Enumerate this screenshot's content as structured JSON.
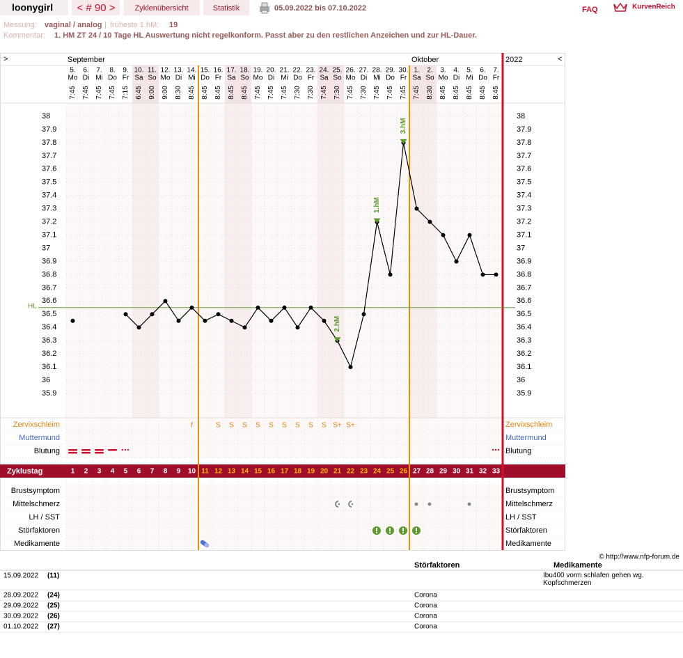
{
  "header": {
    "user": "loonygirl",
    "cycle_nav": "< # 90 >",
    "tabs": [
      "Zyklenübersicht",
      "Statistik"
    ],
    "date_range": "05.09.2022 bis 07.10.2022",
    "faq": "FAQ",
    "logo": "KurvenReich"
  },
  "info": {
    "measurement_label": "Messung:",
    "measurement": "vaginal / analog",
    "separator": "|",
    "earliest_label": "früheste 1.hM:",
    "earliest": "19",
    "comment_label": "Kommentar:",
    "comment": "1. HM ZT 24 / 10 Tage HL Auswertung nicht regelkonform. Passt aber zu den restlichen Anzeichen und zur HL-Dauer."
  },
  "chart_data": {
    "type": "line",
    "nav_left": ">",
    "nav_right": "<",
    "year": "2022",
    "months": [
      {
        "label": "September",
        "category": "5."
      },
      {
        "label": "Oktober",
        "category": "1."
      }
    ],
    "categories": [
      "5.",
      "6.",
      "7.",
      "8.",
      "9.",
      "10.",
      "11.",
      "12.",
      "13.",
      "14.",
      "15.",
      "16.",
      "17.",
      "18.",
      "19.",
      "20.",
      "21.",
      "22.",
      "23.",
      "24.",
      "25.",
      "26.",
      "27.",
      "28.",
      "29.",
      "30.",
      "1.",
      "2.",
      "3.",
      "4.",
      "5.",
      "6.",
      "7."
    ],
    "weekdays": [
      "Mo",
      "Di",
      "Mi",
      "Do",
      "Fr",
      "Sa",
      "So",
      "Mo",
      "Di",
      "Mi",
      "Do",
      "Fr",
      "Sa",
      "So",
      "Mo",
      "Di",
      "Mi",
      "Do",
      "Fr",
      "Sa",
      "So",
      "Mo",
      "Di",
      "Mi",
      "Do",
      "Fr",
      "Sa",
      "So",
      "Mo",
      "Di",
      "Mi",
      "Do",
      "Fr"
    ],
    "times": [
      "7:45",
      "7:45",
      "7:45",
      "7:45",
      "7:15",
      "6:45",
      "9:00",
      "9:00",
      "8:30",
      "8:45",
      "8:45",
      "8:45",
      "8:45",
      "8:45",
      "7:45",
      "7:45",
      "7:45",
      "7:30",
      "7:30",
      "7:45",
      "7:30",
      "7:45",
      "7:30",
      "7:45",
      "7:45",
      "7:45",
      "7:45",
      "8:30",
      "8:45",
      "8:45",
      "8:45",
      "8:45",
      "8:45"
    ],
    "values": [
      36.45,
      null,
      null,
      null,
      36.5,
      36.4,
      36.5,
      36.6,
      36.45,
      36.55,
      36.45,
      36.5,
      36.45,
      36.4,
      36.55,
      36.45,
      36.55,
      36.4,
      36.55,
      36.45,
      36.3,
      36.1,
      36.5,
      37.2,
      36.8,
      37.8,
      37.3,
      37.2,
      37.1,
      36.9,
      37.1,
      36.8,
      36.8
    ],
    "color": "#000000",
    "ylim": [
      35.9,
      38
    ],
    "yticks": [
      35.9,
      36,
      36.1,
      36.2,
      36.3,
      36.4,
      36.5,
      36.6,
      36.7,
      36.8,
      36.9,
      37,
      37.1,
      37.2,
      37.3,
      37.4,
      37.5,
      37.6,
      37.7,
      37.8,
      37.9,
      38
    ],
    "grid": true,
    "cover_line": {
      "label": "HL",
      "value": 36.55,
      "color": "#6a9a3a"
    },
    "annotations": [
      {
        "label": "1.hM",
        "category": "28."
      },
      {
        "label": "2.hM",
        "category": "25."
      },
      {
        "label": "3.hM",
        "category": "30."
      }
    ],
    "mucus_label": "Zervixschleim",
    "mucus": [
      null,
      null,
      null,
      null,
      null,
      null,
      null,
      null,
      null,
      "f",
      null,
      "S",
      "S",
      "S",
      "S",
      "S",
      "S",
      "S",
      "S",
      "S",
      "S+",
      "S+",
      null,
      null,
      null,
      null,
      null,
      null,
      null,
      null,
      null,
      null,
      null
    ],
    "cervix_label": "Muttermund",
    "bleeding_label": "Blutung",
    "cycle_day_label": "Zyklustag",
    "cycle_days": [
      1,
      2,
      3,
      4,
      5,
      6,
      7,
      8,
      9,
      10,
      11,
      12,
      13,
      14,
      15,
      16,
      17,
      18,
      19,
      20,
      21,
      22,
      23,
      24,
      25,
      26,
      27,
      28,
      29,
      30,
      31,
      32,
      33
    ]
  },
  "symptom_rows": [
    "Brustsymptom",
    "Mittelschmerz",
    "LH / SST",
    "Störfaktoren",
    "Medikamente"
  ],
  "copyright": "© http://www.nfp-forum.de",
  "table": {
    "headers": [
      "Störfaktoren",
      "Medikamente"
    ],
    "rows": [
      {
        "date": "15.09.2022",
        "day": "(11)",
        "medication": "Ibu400 vorm schlafen gehen wg. Kopfschmerzen"
      },
      {
        "date": "28.09.2022",
        "day": "(24)",
        "disturbance": "Corona"
      },
      {
        "date": "29.09.2022",
        "day": "(25)",
        "disturbance": "Corona"
      },
      {
        "date": "30.09.2022",
        "day": "(26)",
        "disturbance": "Corona"
      },
      {
        "date": "01.10.2022",
        "day": "(27)",
        "disturbance": "Corona"
      }
    ]
  }
}
